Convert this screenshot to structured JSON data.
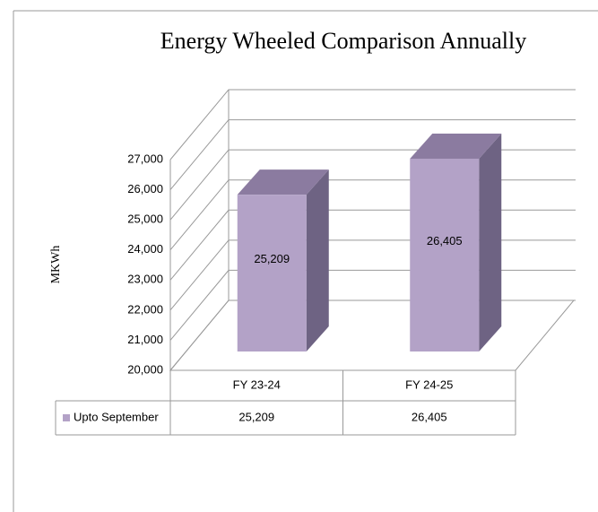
{
  "chart_data": {
    "type": "bar3d",
    "title": "Energy Wheeled Comparison Annually",
    "y_label": "MKWh",
    "categories": [
      "FY 23-24",
      "FY 24-25"
    ],
    "series": [
      {
        "name": "Upto September",
        "color": "#b3a2c7",
        "values": [
          25209,
          26405
        ],
        "value_labels": [
          "25,209",
          "26,405"
        ]
      }
    ],
    "ylim": [
      20000,
      27000
    ],
    "yticks": [
      {
        "value": 20000,
        "label": "20,000"
      },
      {
        "value": 21000,
        "label": "21,000"
      },
      {
        "value": 22000,
        "label": "22,000"
      },
      {
        "value": 23000,
        "label": "23,000"
      },
      {
        "value": 24000,
        "label": "24,000"
      },
      {
        "value": 25000,
        "label": "25,000"
      },
      {
        "value": 26000,
        "label": "26,000"
      },
      {
        "value": 27000,
        "label": "27,000"
      }
    ],
    "grid": true,
    "data_table": true
  }
}
